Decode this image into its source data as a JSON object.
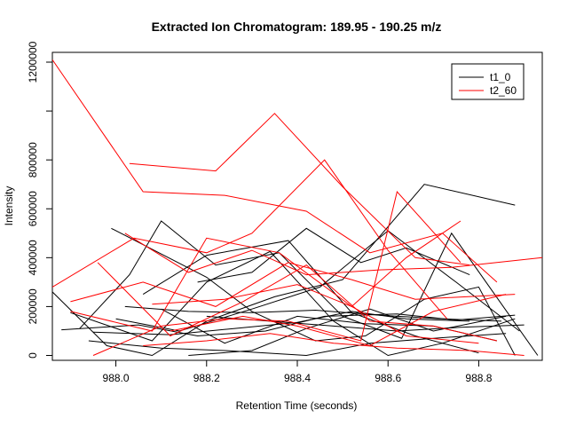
{
  "chart_data": {
    "type": "line",
    "title": "Extracted Ion Chromatogram: 189.95 - 190.25 m/z",
    "xlabel": "Retention Time (seconds)",
    "ylabel": "Intensity",
    "xlim": [
      987.86,
      988.94
    ],
    "ylim": [
      -20000,
      1240000
    ],
    "xticks": [
      {
        "value": 988.0,
        "label": "988.0"
      },
      {
        "value": 988.2,
        "label": "988.2"
      },
      {
        "value": 988.4,
        "label": "988.4"
      },
      {
        "value": 988.6,
        "label": "988.6"
      },
      {
        "value": 988.8,
        "label": "988.8"
      }
    ],
    "yticks": [
      {
        "value": 0,
        "label": "0"
      },
      {
        "value": 200000,
        "label": "200000"
      },
      {
        "value": 400000,
        "label": "400000"
      },
      {
        "value": 600000,
        "label": "600000"
      },
      {
        "value": 800000,
        "label": "800000"
      },
      {
        "value": 1000000,
        "label": ""
      },
      {
        "value": 1200000,
        "label": "1200000"
      }
    ],
    "grid": false,
    "legend_position": "top-right",
    "series": [
      {
        "name": "t1_0",
        "color": "#000000",
        "lines": [
          {
            "x": [
              987.86,
              987.98,
              988.08,
              988.2,
              988.35,
              988.5,
              988.68,
              988.88
            ],
            "y": [
              260000,
              40000,
              0,
              140000,
              240000,
              310000,
              700000,
              615000
            ]
          },
          {
            "x": [
              987.99,
              988.2,
              988.3,
              988.44,
              988.55,
              988.68,
              988.8,
              988.88
            ],
            "y": [
              520000,
              320000,
              180000,
              60000,
              80000,
              230000,
              280000,
              0
            ]
          },
          {
            "x": [
              987.92,
              988.03,
              988.1,
              988.22,
              988.36,
              988.5,
              988.63,
              988.74,
              988.93
            ],
            "y": [
              110000,
              330000,
              550000,
              370000,
              420000,
              160000,
              70000,
              500000,
              0
            ]
          },
          {
            "x": [
              987.9,
              988.08,
              988.2,
              988.34,
              988.48,
              988.6,
              988.72,
              988.88
            ],
            "y": [
              175000,
              60000,
              300000,
              425000,
              140000,
              0,
              50000,
              150000
            ]
          },
          {
            "x": [
              988.0,
              988.14,
              988.3,
              988.45,
              988.6,
              988.75,
              988.89
            ],
            "y": [
              150000,
              100000,
              190000,
              280000,
              510000,
              300000,
              100000
            ]
          },
          {
            "x": [
              987.88,
              988.05,
              988.18,
              988.33,
              988.46,
              988.62,
              988.75,
              988.88
            ],
            "y": [
              105000,
              125000,
              80000,
              100000,
              160000,
              170000,
              145000,
              165000
            ]
          },
          {
            "x": [
              987.95,
              988.12,
              988.26,
              988.4,
              988.52,
              988.64,
              988.78
            ],
            "y": [
              95000,
              85000,
              110000,
              135000,
              180000,
              150000,
              140000
            ]
          },
          {
            "x": [
              988.06,
              988.2,
              988.38,
              988.52,
              988.66,
              988.8
            ],
            "y": [
              250000,
              410000,
              470000,
              175000,
              80000,
              10000
            ]
          },
          {
            "x": [
              988.16,
              988.3,
              988.42,
              988.56,
              988.7,
              988.86
            ],
            "y": [
              0,
              20000,
              110000,
              190000,
              100000,
              160000
            ]
          },
          {
            "x": [
              987.94,
              988.1,
              988.24,
              988.42,
              988.56,
              988.7,
              988.86
            ],
            "y": [
              60000,
              30000,
              20000,
              0,
              50000,
              70000,
              90000
            ]
          },
          {
            "x": [
              988.1,
              988.24,
              988.4,
              988.55,
              988.7,
              988.84
            ],
            "y": [
              190000,
              50000,
              160000,
              130000,
              120000,
              60000
            ]
          },
          {
            "x": [
              988.18,
              988.3,
              988.42,
              988.54,
              988.64,
              988.78
            ],
            "y": [
              300000,
              340000,
              520000,
              380000,
              440000,
              330000
            ]
          },
          {
            "x": [
              988.2,
              988.34,
              988.48,
              988.62,
              988.76,
              988.9
            ],
            "y": [
              160000,
              140000,
              120000,
              100000,
              115000,
              125000
            ]
          },
          {
            "x": [
              988.02,
              988.16,
              988.3,
              988.44,
              988.58,
              988.72,
              988.85
            ],
            "y": [
              200000,
              180000,
              175000,
              185000,
              165000,
              150000,
              140000
            ]
          }
        ]
      },
      {
        "name": "t2_60",
        "color": "#ff0000",
        "lines": [
          {
            "x": [
              987.86,
              988.06,
              988.24,
              988.42,
              988.56,
              988.72,
              988.84
            ],
            "y": [
              1210000,
              670000,
              655000,
              590000,
              420000,
              500000,
              300000
            ]
          },
          {
            "x": [
              988.03,
              988.22,
              988.35,
              988.5,
              988.66,
              988.78
            ],
            "y": [
              785000,
              755000,
              990000,
              690000,
              400000,
              370000
            ]
          },
          {
            "x": [
              987.86,
              988.04,
              988.2,
              988.3,
              988.46,
              988.6,
              988.73
            ],
            "y": [
              280000,
              480000,
              420000,
              500000,
              800000,
              430000,
              150000
            ]
          },
          {
            "x": [
              987.9,
              988.06,
              988.22,
              988.38,
              988.52,
              988.66,
              988.88
            ],
            "y": [
              220000,
              300000,
              200000,
              380000,
              310000,
              230000,
              250000
            ]
          },
          {
            "x": [
              987.95,
              988.1,
              988.24,
              988.38,
              988.54,
              988.62,
              988.76
            ],
            "y": [
              0,
              120000,
              150000,
              140000,
              60000,
              670000,
              380000
            ]
          },
          {
            "x": [
              988.02,
              988.16,
              988.3,
              988.42,
              988.58,
              988.74,
              988.94
            ],
            "y": [
              500000,
              340000,
              430000,
              330000,
              350000,
              360000,
              400000
            ]
          },
          {
            "x": [
              987.9,
              988.08,
              988.2,
              988.36,
              988.52,
              988.64,
              988.76
            ],
            "y": [
              180000,
              100000,
              480000,
              420000,
              200000,
              400000,
              550000
            ]
          },
          {
            "x": [
              987.96,
              988.12,
              988.28,
              988.42,
              988.56,
              988.7,
              988.84
            ],
            "y": [
              380000,
              80000,
              220000,
              370000,
              140000,
              120000,
              60000
            ]
          },
          {
            "x": [
              988.06,
              988.2,
              988.34,
              988.48,
              988.62,
              988.78,
              988.9
            ],
            "y": [
              40000,
              60000,
              90000,
              50000,
              30000,
              20000,
              0
            ]
          },
          {
            "x": [
              988.08,
              988.24,
              988.4,
              988.52,
              988.64,
              988.8
            ],
            "y": [
              210000,
              230000,
              290000,
              200000,
              80000,
              50000
            ]
          },
          {
            "x": [
              988.12,
              988.28,
              988.4,
              988.56,
              988.7,
              988.86
            ],
            "y": [
              100000,
              160000,
              120000,
              40000,
              180000,
              250000
            ]
          }
        ]
      }
    ]
  }
}
